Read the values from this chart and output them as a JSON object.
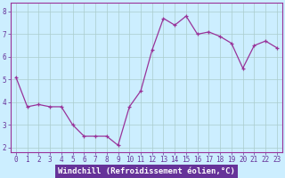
{
  "x": [
    0,
    1,
    2,
    3,
    4,
    5,
    6,
    7,
    8,
    9,
    10,
    11,
    12,
    13,
    14,
    15,
    16,
    17,
    18,
    19,
    20,
    21,
    22,
    23
  ],
  "y": [
    5.1,
    3.8,
    3.9,
    3.8,
    3.8,
    3.0,
    2.5,
    2.5,
    2.5,
    2.1,
    3.8,
    4.5,
    6.3,
    7.7,
    7.4,
    7.8,
    7.0,
    7.1,
    6.9,
    6.6,
    5.5,
    6.5,
    6.7,
    6.4
  ],
  "line_color": "#993399",
  "marker_color": "#993399",
  "bg_color": "#cceeff",
  "grid_color": "#aacccc",
  "xlabel": "Windchill (Refroidissement éolien,°C)",
  "xlabel_color": "#ffffff",
  "xlabel_bg": "#663399",
  "ylim": [
    1.8,
    8.4
  ],
  "xlim": [
    -0.5,
    23.5
  ],
  "yticks": [
    2,
    3,
    4,
    5,
    6,
    7,
    8
  ],
  "xticks": [
    0,
    1,
    2,
    3,
    4,
    5,
    6,
    7,
    8,
    9,
    10,
    11,
    12,
    13,
    14,
    15,
    16,
    17,
    18,
    19,
    20,
    21,
    22,
    23
  ],
  "tick_fontsize": 5.5,
  "label_fontsize": 6.5
}
